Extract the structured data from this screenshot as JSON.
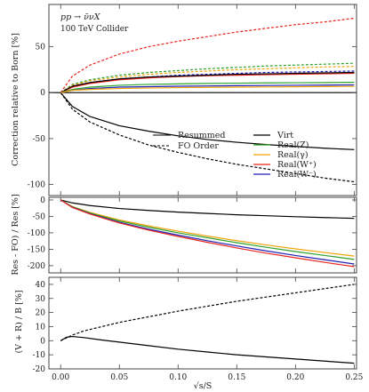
{
  "colors": {
    "Virt": "#000000",
    "RealZ": "#2ca02c",
    "RealGamma": "#f0a30a",
    "RealWplus": "#e8251e",
    "RealWminus": "#1f1fb4",
    "axis": "#555555"
  },
  "chart_data": [
    {
      "type": "line",
      "annotation": [
        "pp → ν̄νX",
        "100 TeV Collider"
      ],
      "ylabel": "Correction relative to Born [%]",
      "xlabel": "",
      "xlim": [
        -0.01,
        0.252
      ],
      "ylim": [
        -112,
        96
      ],
      "yticks": [
        -100,
        -50,
        0,
        50
      ],
      "xticks": [
        0.0,
        0.05,
        0.1,
        0.15,
        0.2,
        0.25
      ],
      "grid": false,
      "zero_line": true,
      "legend": {
        "placement": "center-right",
        "style_entries": [
          {
            "label": "Resummed",
            "dash": false
          },
          {
            "label": "FO Order",
            "dash": true
          }
        ],
        "series_entries": [
          {
            "label": "Virt",
            "color_key": "Virt"
          },
          {
            "label": "Real(Z)",
            "color_key": "RealZ"
          },
          {
            "label": "Real(γ)",
            "color_key": "RealGamma"
          },
          {
            "label": "Real(W⁺)",
            "color_key": "RealWplus"
          },
          {
            "label": "Real(W⁻)",
            "color_key": "RealWminus"
          }
        ]
      },
      "x": [
        0.0,
        0.01,
        0.025,
        0.05,
        0.075,
        0.1,
        0.125,
        0.15,
        0.175,
        0.2,
        0.225,
        0.25
      ],
      "series": [
        {
          "color_key": "Virt",
          "dash": false,
          "values": [
            0,
            -15,
            -26,
            -36,
            -42,
            -47,
            -51,
            -54,
            -56.5,
            -58.5,
            -60.5,
            -62
          ]
        },
        {
          "color_key": "Virt",
          "dash": true,
          "values": [
            0,
            -18,
            -32,
            -46,
            -57,
            -65,
            -72,
            -78,
            -83,
            -88,
            -93,
            -97
          ]
        },
        {
          "color_key": "RealWplus",
          "dash": true,
          "values": [
            0,
            18,
            30,
            42,
            50,
            56,
            61,
            66,
            70,
            74,
            77,
            81
          ]
        },
        {
          "color_key": "RealZ",
          "dash": true,
          "values": [
            0,
            9,
            14,
            19,
            22,
            24,
            26,
            27.5,
            29,
            30,
            31,
            32
          ]
        },
        {
          "color_key": "RealGamma",
          "dash": true,
          "values": [
            0,
            8,
            13,
            17,
            20,
            22,
            23.5,
            25,
            26,
            27,
            28,
            28.5
          ]
        },
        {
          "color_key": "RealWminus",
          "dash": true,
          "values": [
            0,
            7,
            11,
            15,
            17,
            19,
            20,
            21,
            22,
            22.5,
            23,
            23.5
          ]
        },
        {
          "color_key": "RealWplus",
          "dash": false,
          "values": [
            0,
            6,
            10,
            14,
            16,
            17.5,
            18.5,
            19,
            19.5,
            20,
            20.5,
            21
          ]
        },
        {
          "color_key": "Virt",
          "dash": false,
          "values": [
            0,
            7,
            11,
            15,
            17,
            18,
            19,
            20,
            20.5,
            21,
            21.5,
            22
          ]
        },
        {
          "color_key": "RealZ",
          "dash": false,
          "values": [
            0,
            3.5,
            6,
            8,
            9,
            9.5,
            10,
            10.3,
            10.6,
            10.8,
            11,
            11.2
          ]
        },
        {
          "color_key": "RealWminus",
          "dash": false,
          "values": [
            0,
            2.5,
            4.5,
            6,
            6.5,
            7,
            7.3,
            7.6,
            7.8,
            8,
            8.2,
            8.4
          ]
        },
        {
          "color_key": "RealGamma",
          "dash": false,
          "values": [
            0,
            2.5,
            3.5,
            4.5,
            5,
            5.5,
            5.8,
            6,
            6.2,
            6.4,
            6.6,
            6.8
          ]
        }
      ]
    },
    {
      "type": "line",
      "ylabel": "Res - FO) / Res [%]",
      "xlabel": "",
      "xlim": [
        -0.01,
        0.252
      ],
      "ylim": [
        -222,
        8
      ],
      "yticks": [
        -200,
        -150,
        -100,
        -50,
        0
      ],
      "xticks": [
        0.0,
        0.05,
        0.1,
        0.15,
        0.2,
        0.25
      ],
      "grid": false,
      "x": [
        0.0,
        0.01,
        0.025,
        0.05,
        0.075,
        0.1,
        0.125,
        0.15,
        0.175,
        0.2,
        0.225,
        0.25
      ],
      "series": [
        {
          "color_key": "Virt",
          "dash": false,
          "values": [
            0,
            -9,
            -17,
            -26,
            -32,
            -37,
            -41,
            -45,
            -48,
            -51,
            -53.5,
            -56
          ]
        },
        {
          "color_key": "RealGamma",
          "dash": false,
          "values": [
            0,
            -20,
            -38,
            -61,
            -79,
            -95,
            -110,
            -124,
            -137,
            -149,
            -160,
            -171
          ]
        },
        {
          "color_key": "RealZ",
          "dash": false,
          "values": [
            0,
            -21,
            -40,
            -64,
            -83,
            -100,
            -115,
            -130,
            -144,
            -157,
            -169,
            -181
          ]
        },
        {
          "color_key": "RealWminus",
          "dash": false,
          "values": [
            0,
            -22,
            -42,
            -68,
            -89,
            -107,
            -124,
            -140,
            -155,
            -169,
            -182,
            -195
          ]
        },
        {
          "color_key": "RealWplus",
          "dash": false,
          "values": [
            0,
            -23,
            -43,
            -70,
            -92,
            -111,
            -129,
            -146,
            -162,
            -176,
            -190,
            -203
          ]
        }
      ]
    },
    {
      "type": "line",
      "ylabel": "(V + R) / B [%]",
      "xlabel": "√s/S",
      "xlim": [
        -0.01,
        0.252
      ],
      "ylim": [
        -20,
        45
      ],
      "yticks": [
        -20,
        -10,
        0,
        10,
        20,
        30,
        40
      ],
      "xticks": [
        0.0,
        0.05,
        0.1,
        0.15,
        0.2,
        0.25
      ],
      "xticklabels": [
        "0.00",
        "0.05",
        "0.10",
        "0.15",
        "0.20",
        "0.25"
      ],
      "grid": false,
      "x": [
        0.0,
        0.005,
        0.01,
        0.02,
        0.035,
        0.05,
        0.075,
        0.1,
        0.125,
        0.15,
        0.175,
        0.2,
        0.225,
        0.25
      ],
      "series": [
        {
          "color_key": "Virt",
          "dash": true,
          "values": [
            0,
            2,
            4,
            7,
            10,
            13,
            17,
            21,
            24.5,
            28,
            31,
            34,
            37,
            40
          ]
        },
        {
          "color_key": "Virt",
          "dash": false,
          "values": [
            0,
            2.5,
            3,
            2.2,
            0.5,
            -1,
            -3.5,
            -6,
            -8,
            -10,
            -11.5,
            -13,
            -14.5,
            -16
          ]
        }
      ]
    }
  ]
}
